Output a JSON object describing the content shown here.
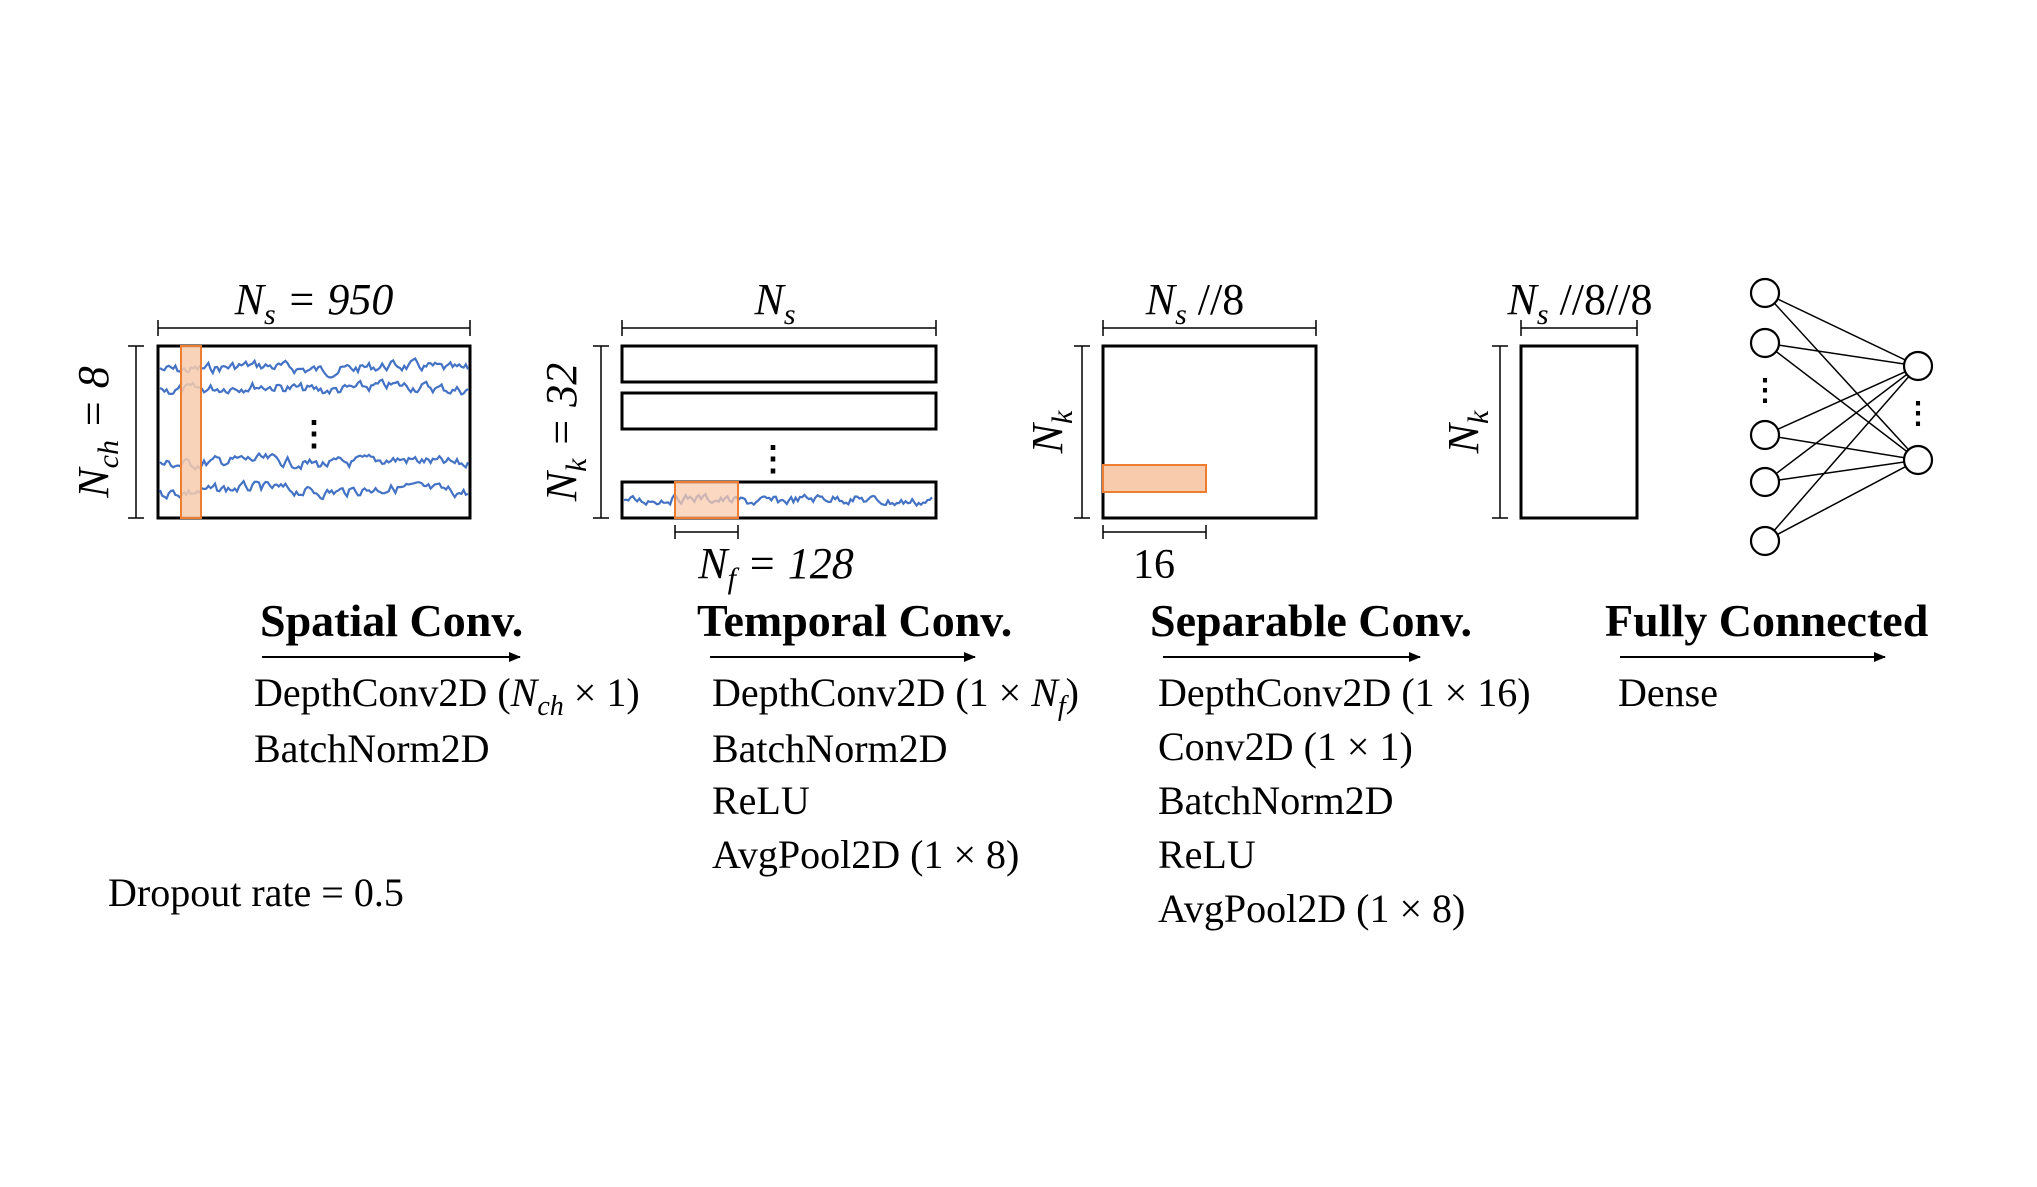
{
  "stages": {
    "spatial": {
      "dim_width": {
        "sym": "N",
        "sub": "s",
        "rest": " = 950"
      },
      "dim_height": {
        "sym": "N",
        "sub": "ch",
        "rest": " = 8"
      },
      "title": "Spatial Conv.",
      "ops": [
        {
          "pre": "DepthConv2D (",
          "sym": "N",
          "sub": "ch",
          "post": " × 1)"
        },
        {
          "pre": "BatchNorm2D"
        }
      ]
    },
    "temporal": {
      "dim_width": {
        "sym": "N",
        "sub": "s",
        "rest": ""
      },
      "dim_height": {
        "sym": "N",
        "sub": "k",
        "rest": " = 32"
      },
      "dim_filter": {
        "sym": "N",
        "sub": "f",
        "rest": " = 128"
      },
      "title": "Temporal Conv.",
      "ops": [
        {
          "pre": "DepthConv2D (1 × ",
          "sym": "N",
          "sub": "f",
          "post": ")"
        },
        {
          "pre": "BatchNorm2D"
        },
        {
          "pre": "ReLU"
        },
        {
          "pre": "AvgPool2D (1 × 8)"
        }
      ]
    },
    "separable": {
      "dim_width": {
        "sym": "N",
        "sub": "s",
        "rest": " //8"
      },
      "dim_height": {
        "sym": "N",
        "sub": "k",
        "rest": ""
      },
      "dim_filter": "16",
      "title": "Separable Conv.",
      "ops": [
        {
          "pre": "DepthConv2D (1 × 16)"
        },
        {
          "pre": "Conv2D (1 × 1)"
        },
        {
          "pre": "BatchNorm2D"
        },
        {
          "pre": "ReLU"
        },
        {
          "pre": "AvgPool2D (1 × 8)"
        }
      ]
    },
    "dense": {
      "dim_width": {
        "sym": "N",
        "sub": "s",
        "rest": " //8//8"
      },
      "dim_height": {
        "sym": "N",
        "sub": "k",
        "rest": ""
      },
      "title": "Fully Connected",
      "ops": [
        {
          "pre": "Dense"
        }
      ]
    }
  },
  "dropout": "Dropout rate = 0.5",
  "ellipsis": "⋮",
  "colors": {
    "signal": "#4472c4",
    "highlight_fill": "#f8cbad",
    "highlight_stroke": "#ed7d31"
  }
}
